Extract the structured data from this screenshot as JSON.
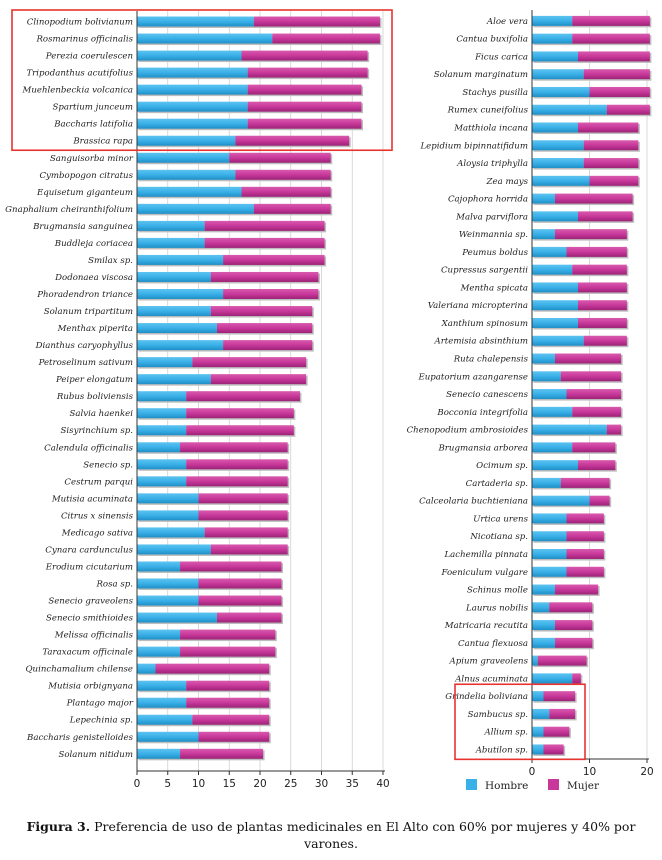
{
  "chart_data": [
    {
      "type": "bar",
      "stacked": true,
      "orientation": "horizontal",
      "xlim": [
        0,
        40
      ],
      "xticks": [
        0,
        5,
        10,
        15,
        20,
        25,
        30,
        35,
        40
      ],
      "categories": [
        "Clinopodium bolivianum",
        "Rosmarinus officinalis",
        "Perezia coerulescen",
        "Tripodanthus acutifolius",
        "Muehlenbeckia volcanica",
        "Spartium junceum",
        "Baccharis latifolia",
        "Brassica rapa",
        "Sanguisorba minor",
        "Cymbopogon citratus",
        "Equisetum giganteum",
        "Gnaphalium cheiranthifolium",
        "Brugmansia sanguinea",
        "Buddleja coriacea",
        "Smilax sp.",
        "Dodonaea viscosa",
        "Phoradendron triance",
        "Solanum tripartitum",
        "Menthax piperita",
        "Dianthus caryophyllus",
        "Petroselinum sativum",
        "Peiper elongatum",
        "Rubus boliviensis",
        "Salvia haenkei",
        "Sisyrinchium sp.",
        "Calendula officinalis",
        "Senecio sp.",
        "Cestrum parqui",
        "Mutisia acuminata",
        "Citrus x sinensis",
        "Medicago sativa",
        "Cynara cardunculus",
        "Erodium cicutarium",
        "Rosa sp.",
        "Senecio graveolens",
        "Senecio smithioides",
        "Melissa officinalis",
        "Taraxacum officinale",
        "Quinchamalium chilense",
        "Mutisia orbignyana",
        "Plantago major",
        "Lepechinia sp.",
        "Baccharis genistelloides",
        "Solanum nitidum"
      ],
      "series": [
        {
          "name": "Hombre",
          "values": [
            19,
            22,
            17,
            18,
            18,
            18,
            18,
            16,
            15,
            16,
            17,
            19,
            11,
            11,
            14,
            12,
            14,
            12,
            13,
            14,
            9,
            12,
            8,
            8,
            8,
            7,
            8,
            8,
            10,
            10,
            11,
            12,
            7,
            10,
            10,
            13,
            7,
            7,
            3,
            8,
            8,
            9,
            10,
            7
          ]
        },
        {
          "name": "Mujer",
          "values": [
            20.5,
            17.5,
            20.5,
            19.5,
            18.5,
            18.5,
            18.5,
            18.5,
            16.5,
            15.5,
            14.5,
            12.5,
            19.5,
            19.5,
            16.5,
            17.5,
            15.5,
            16.5,
            15.5,
            14.5,
            18.5,
            15.5,
            18.5,
            17.5,
            17.5,
            17.5,
            16.5,
            16.5,
            14.5,
            14.5,
            13.5,
            12.5,
            16.5,
            13.5,
            13.5,
            10.5,
            15.5,
            15.5,
            18.5,
            13.5,
            13.5,
            12.5,
            11.5,
            13.5
          ]
        }
      ],
      "highlight": [
        "Clinopodium bolivianum",
        "Brassica rapa"
      ]
    },
    {
      "type": "bar",
      "stacked": true,
      "orientation": "horizontal",
      "xlim": [
        0,
        20
      ],
      "xticks": [
        0,
        10,
        20
      ],
      "categories": [
        "Aloe vera",
        "Cantua buxifolia",
        "Ficus carica",
        "Solanum marginatum",
        "Stachys pusilla",
        "Rumex cuneifolius",
        "Matthiola incana",
        "Lepidium bipinnatifidum",
        "Aloysia triphylla",
        "Zea mays",
        "Cajophora horrida",
        "Malva parviflora",
        "Weinmannia sp.",
        "Peumus boldus",
        "Cupressus sargentii",
        "Mentha spicata",
        "Valeriana micropterina",
        "Xanthium spinosum",
        "Artemisia absinthium",
        "Ruta chalepensis",
        "Eupatorium azangarense",
        "Senecio canescens",
        "Bocconia integrifolia",
        "Chenopodium ambrosioides",
        "Brugmansia arborea",
        "Ocimum sp.",
        "Cartaderia sp.",
        "Calceolaria buchtieniana",
        "Urtica urens",
        "Nicotiana sp.",
        "Lachemilla pinnata",
        "Foeniculum vulgare",
        "Schinus molle",
        "Laurus nobilis",
        "Matricaria recutita",
        "Cantua flexuosa",
        "Apium graveolens",
        "Alnus acuminata",
        "Grindelia boliviana",
        "Sambucus sp.",
        "Allium sp.",
        "Abutilon sp."
      ],
      "series": [
        {
          "name": "Hombre",
          "values": [
            7,
            7,
            8,
            9,
            10,
            13,
            8,
            9,
            9,
            10,
            4,
            8,
            4,
            6,
            7,
            8,
            8,
            8,
            9,
            4,
            5,
            6,
            7,
            13,
            7,
            8,
            5,
            10,
            6,
            6,
            6,
            6,
            4,
            3,
            4,
            4,
            1,
            7,
            2,
            3,
            2,
            2
          ]
        },
        {
          "name": "Mujer",
          "values": [
            13.5,
            13.5,
            12.5,
            11.5,
            10.5,
            7.5,
            10.5,
            9.5,
            9.5,
            8.5,
            13.5,
            9.5,
            12.5,
            10.5,
            9.5,
            8.5,
            8.5,
            8.5,
            7.5,
            11.5,
            10.5,
            9.5,
            8.5,
            2.5,
            7.5,
            6.5,
            8.5,
            3.5,
            6.5,
            6.5,
            6.5,
            6.5,
            7.5,
            7.5,
            6.5,
            6.5,
            8.5,
            1.5,
            5.5,
            4.5,
            4.5,
            3.5
          ]
        }
      ],
      "highlight": [
        "Grindelia boliviana",
        "Abutilon sp."
      ]
    }
  ],
  "legend": {
    "items": [
      {
        "label": "Hombre",
        "color": "#3ab0e8"
      },
      {
        "label": "Mujer",
        "color": "#c8389a"
      }
    ]
  },
  "colors": {
    "hombre": "#3ab0e8",
    "mujer": "#c8389a",
    "highlight_box": "#e8332f"
  },
  "caption": {
    "label": "Figura 3.",
    "text": " Preferencia de uso de plantas medicinales en El Alto con 60% por mujeres y 40% por varones."
  }
}
